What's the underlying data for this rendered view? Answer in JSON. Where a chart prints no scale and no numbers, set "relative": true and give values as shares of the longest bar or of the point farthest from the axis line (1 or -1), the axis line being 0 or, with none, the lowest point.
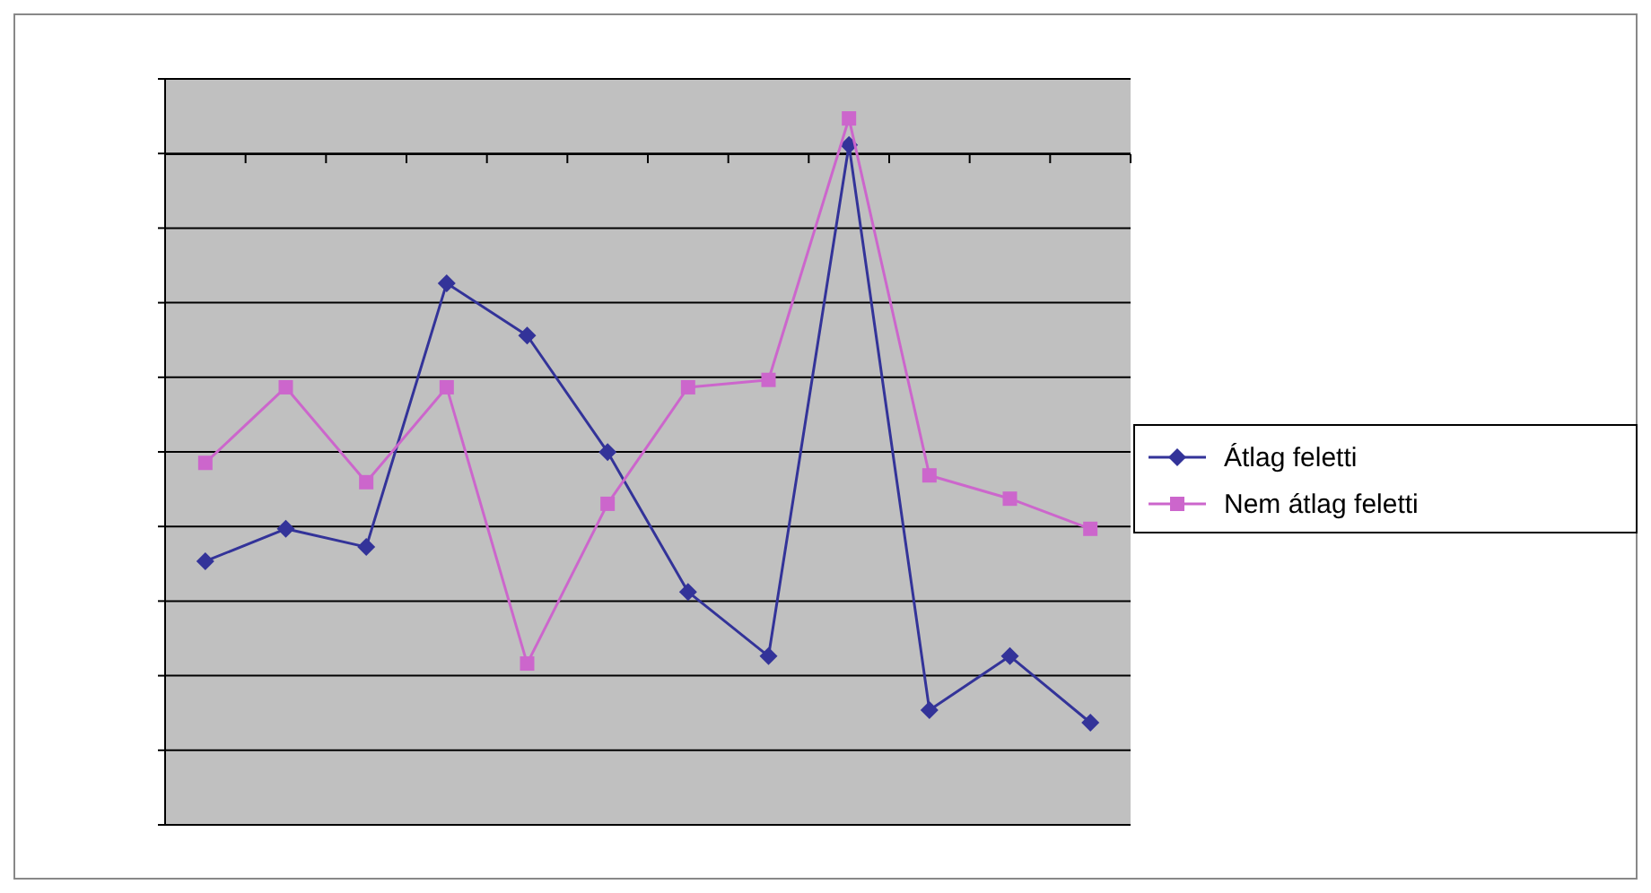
{
  "chart_data": {
    "type": "line",
    "relative": true,
    "categories": [
      null,
      null,
      null,
      null,
      null,
      null,
      null,
      null,
      null,
      null,
      null,
      null
    ],
    "series": [
      {
        "name": "Átlag feletti",
        "color": "#333399",
        "marker": "diamond",
        "values": [
          -0.716,
          -0.659,
          -0.691,
          -0.227,
          -0.319,
          -0.524,
          -0.77,
          -0.883,
          0.016,
          -0.978,
          -0.883,
          -1
        ]
      },
      {
        "name": "Nem átlag feletti",
        "color": "#cc66cc",
        "marker": "square",
        "values": [
          -0.543,
          -0.41,
          -0.577,
          -0.41,
          -0.896,
          -0.615,
          -0.41,
          -0.397,
          0.063,
          -0.565,
          -0.606,
          -0.659
        ]
      }
    ],
    "grid": true,
    "legend": "right"
  }
}
